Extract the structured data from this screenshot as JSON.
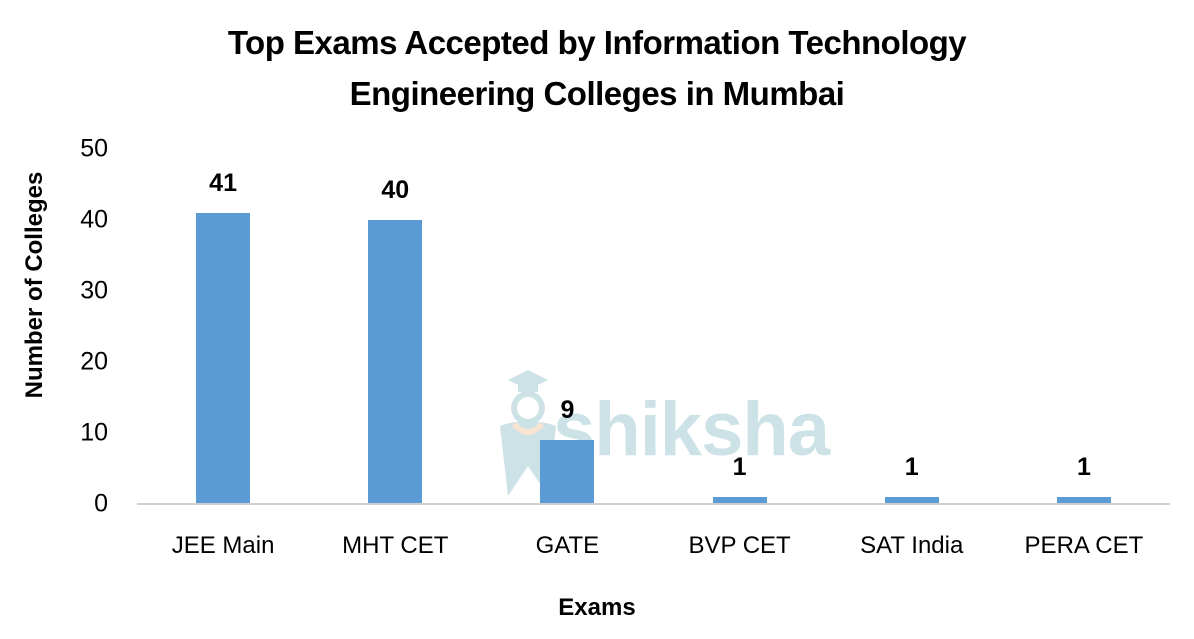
{
  "chart_data": {
    "type": "bar",
    "title": "Top Exams Accepted by Information Technology Engineering Colleges in Mumbai",
    "title_lines": [
      "Top Exams Accepted by Information Technology",
      "Engineering Colleges in Mumbai"
    ],
    "xlabel": "Exams",
    "ylabel": "Number of Colleges",
    "categories": [
      "JEE Main",
      "MHT CET",
      "GATE",
      "BVP CET",
      "SAT India",
      "PERA CET"
    ],
    "values": [
      41,
      40,
      9,
      1,
      1,
      1
    ],
    "data_labels": [
      "41",
      "40",
      "9",
      "1",
      "1",
      "1"
    ],
    "ylim": [
      0,
      50
    ],
    "yticks": [
      "0",
      "10",
      "20",
      "30",
      "40",
      "50"
    ],
    "grid": false,
    "legend": null,
    "bar_color": "#5b9bd5",
    "axis_color": "#d0d0d0"
  },
  "watermark": {
    "text": "shiksha",
    "icon": "graduate-cap-icon"
  }
}
